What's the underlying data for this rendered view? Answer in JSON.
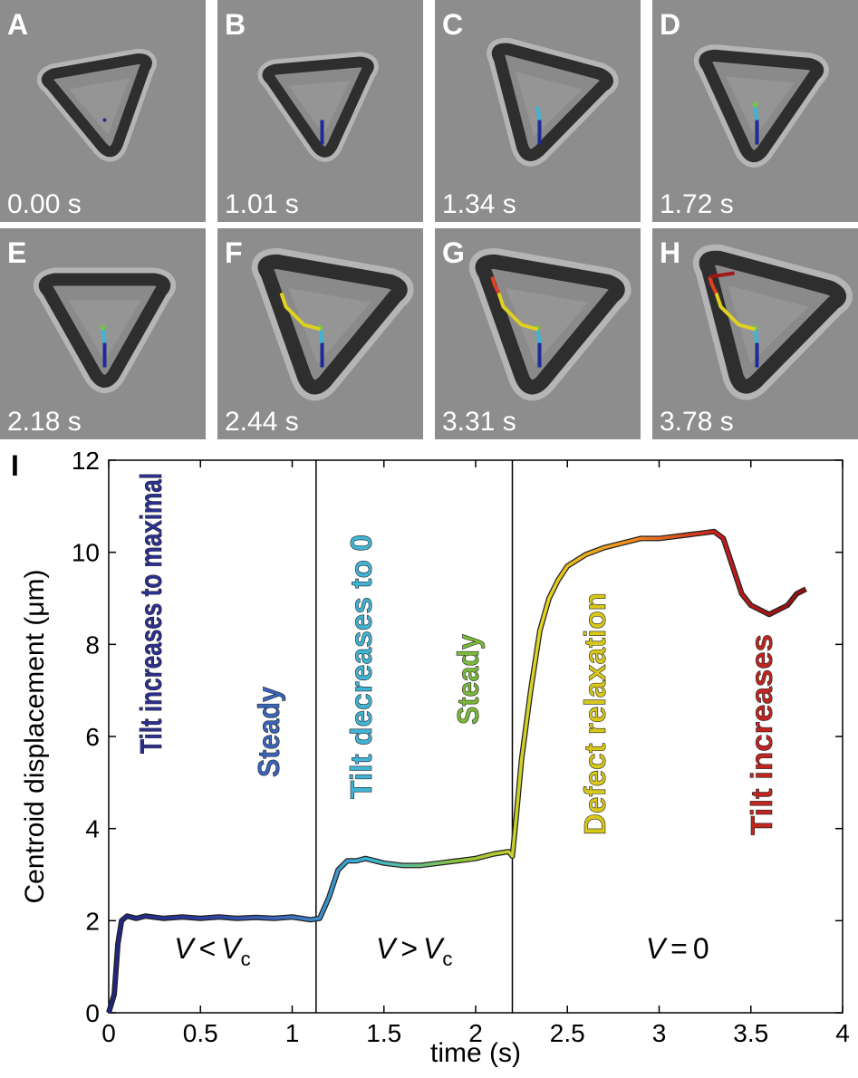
{
  "panels": [
    {
      "letter": "A",
      "time": "0.00 s"
    },
    {
      "letter": "B",
      "time": "1.01 s"
    },
    {
      "letter": "C",
      "time": "1.34 s"
    },
    {
      "letter": "D",
      "time": "1.72 s"
    },
    {
      "letter": "E",
      "time": "2.18 s"
    },
    {
      "letter": "F",
      "time": "2.44 s"
    },
    {
      "letter": "G",
      "time": "3.31 s"
    },
    {
      "letter": "H",
      "time": "3.78 s"
    }
  ],
  "chart_data": {
    "type": "line",
    "panel_label": "I",
    "x_label": "time (s)",
    "y_label": "Centroid displacement (μm)",
    "xlim": [
      0,
      4
    ],
    "ylim": [
      0,
      12
    ],
    "xticks": [
      0,
      0.5,
      1,
      1.5,
      2,
      2.5,
      3,
      3.5,
      4
    ],
    "yticks": [
      0,
      2,
      4,
      6,
      8,
      10,
      12
    ],
    "phase_boundaries": [
      1.13,
      2.2
    ],
    "phase_labels": [
      [
        "V",
        "<",
        "V",
        "c"
      ],
      [
        "V",
        ">",
        "V",
        "c"
      ],
      [
        "V",
        "=",
        "0"
      ]
    ],
    "colormap": [
      "#1f2480",
      "#2a3a9c",
      "#3d6cc0",
      "#3cb6d8",
      "#8cc43c",
      "#e6d51f",
      "#f08a1e",
      "#c81e1e",
      "#8a1010"
    ],
    "annotations": [
      {
        "text": "Tilt increases to maximal",
        "color": "#2b2f8f"
      },
      {
        "text": "Steady",
        "color": "#3a64b8"
      },
      {
        "text": "Tilt decreases to 0",
        "color": "#3fb5d6"
      },
      {
        "text": "Steady",
        "color": "#7ab83a"
      },
      {
        "text": "Defect relaxation",
        "color": "#d8c81a"
      },
      {
        "text": "Tilt increases",
        "color": "#c0251f"
      }
    ],
    "x": [
      0,
      0.03,
      0.05,
      0.07,
      0.1,
      0.15,
      0.2,
      0.3,
      0.4,
      0.5,
      0.6,
      0.7,
      0.8,
      0.9,
      1.0,
      1.1,
      1.15,
      1.2,
      1.25,
      1.3,
      1.35,
      1.4,
      1.5,
      1.6,
      1.7,
      1.8,
      1.9,
      2.0,
      2.1,
      2.18,
      2.2,
      2.22,
      2.25,
      2.3,
      2.35,
      2.4,
      2.45,
      2.5,
      2.6,
      2.7,
      2.8,
      2.9,
      3.0,
      3.1,
      3.2,
      3.3,
      3.35,
      3.4,
      3.45,
      3.5,
      3.6,
      3.7,
      3.75,
      3.8
    ],
    "values": [
      0,
      0.4,
      1.5,
      2.0,
      2.1,
      2.05,
      2.1,
      2.05,
      2.08,
      2.05,
      2.08,
      2.05,
      2.07,
      2.05,
      2.08,
      2.02,
      2.05,
      2.5,
      3.1,
      3.3,
      3.3,
      3.35,
      3.25,
      3.2,
      3.2,
      3.25,
      3.3,
      3.35,
      3.45,
      3.5,
      3.4,
      4.2,
      5.5,
      7.0,
      8.3,
      9.0,
      9.4,
      9.7,
      9.95,
      10.1,
      10.2,
      10.3,
      10.3,
      10.35,
      10.4,
      10.45,
      10.3,
      9.7,
      9.1,
      8.85,
      8.65,
      8.85,
      9.1,
      9.2
    ]
  }
}
